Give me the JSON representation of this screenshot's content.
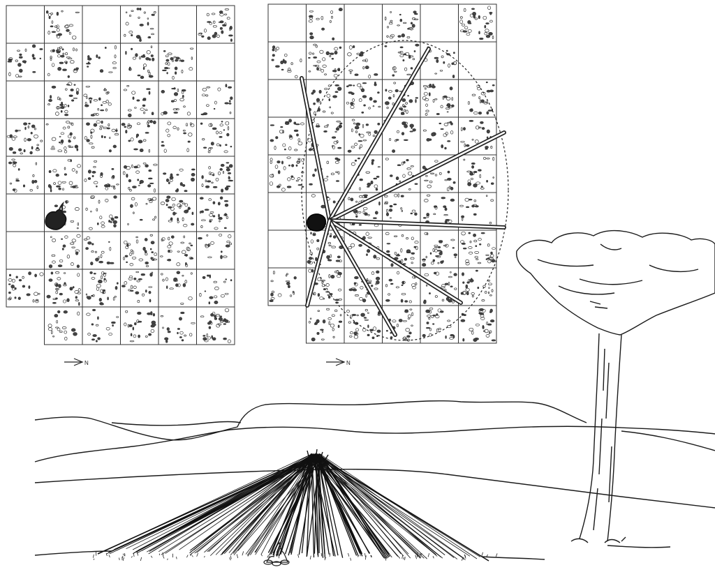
{
  "figure": {
    "left_plan": {
      "north_label": "N"
    },
    "right_plan": {
      "north_label": "N"
    },
    "colors": {
      "ink": "#1a1a1a",
      "paper": "#ffffff",
      "grid": "#333333"
    }
  }
}
